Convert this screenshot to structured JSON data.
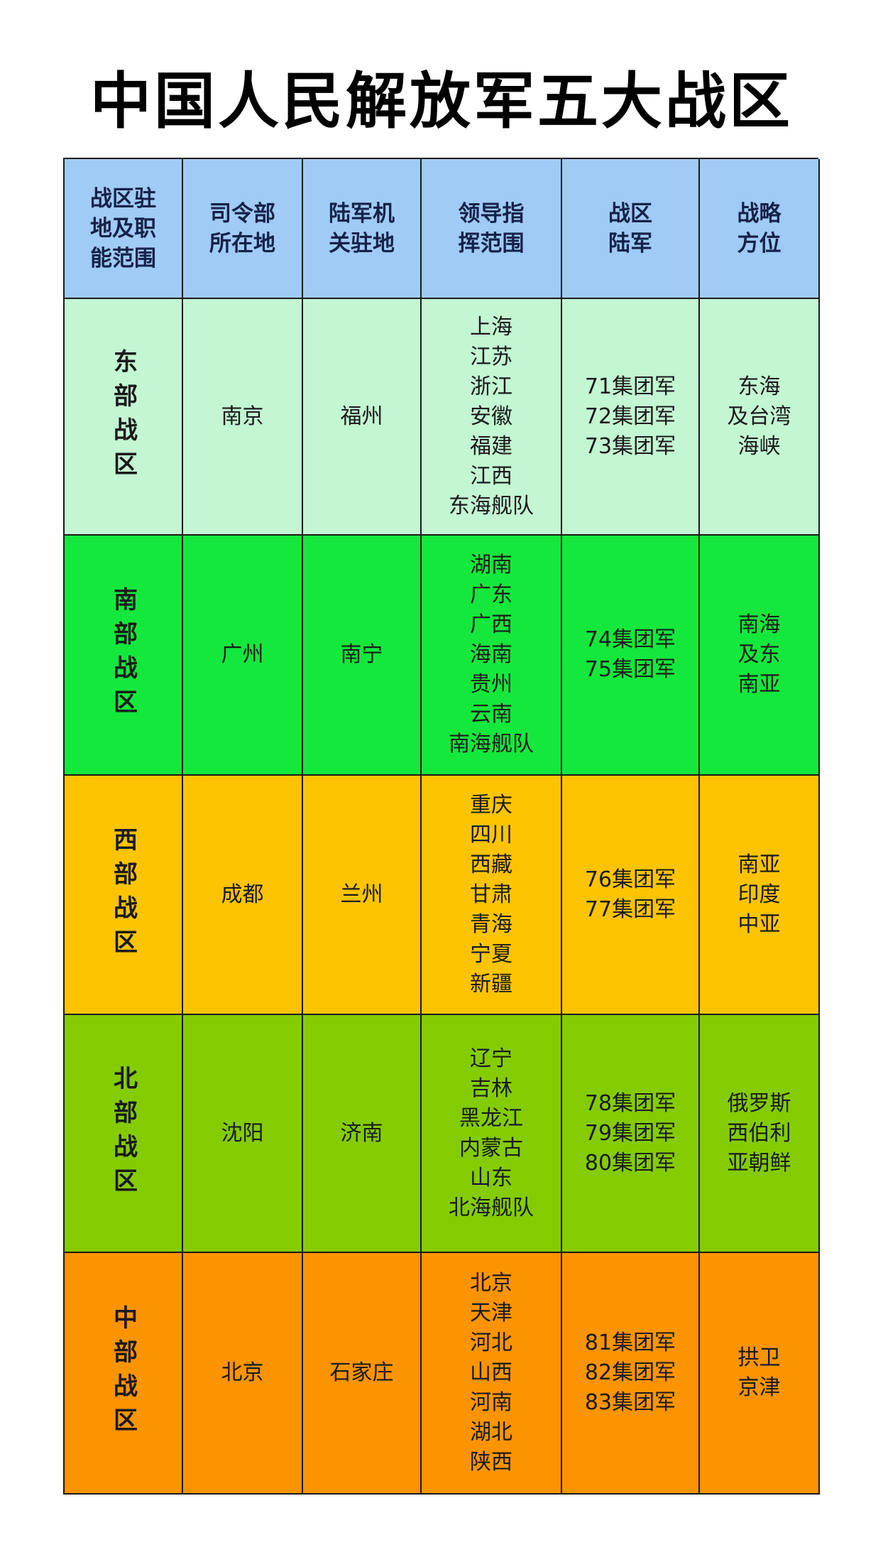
{
  "title": "中国人民解放军五大战区",
  "header": [
    "战区驻\n地及职\n能范围",
    "司令部\n所在地",
    "陆军机\n关驻地",
    "领导指\n挥范围",
    "战区\n陆军",
    "战略\n方位"
  ],
  "colors": {
    "header": "#9fcbf4",
    "east": "#c3f6d2",
    "south": "#14e83c",
    "west": "#fcc400",
    "north": "#84cc00",
    "central": "#fb9400"
  },
  "rows": [
    {
      "zone": "东部战区",
      "hq": "南京",
      "army_hq": "福州",
      "command": [
        "上海",
        "江苏",
        "浙江",
        "安徽",
        "福建",
        "江西",
        "东海舰队"
      ],
      "armies": [
        "71集团军",
        "72集团军",
        "73集团军"
      ],
      "strategic": [
        "东海",
        "及台湾",
        "海峡"
      ],
      "color_key": "east"
    },
    {
      "zone": "南部战区",
      "hq": "广州",
      "army_hq": "南宁",
      "command": [
        "湖南",
        "广东",
        "广西",
        "海南",
        "贵州",
        "云南",
        "南海舰队"
      ],
      "armies": [
        "74集团军",
        "75集团军"
      ],
      "strategic": [
        "南海",
        "及东",
        "南亚"
      ],
      "color_key": "south"
    },
    {
      "zone": "西部战区",
      "hq": "成都",
      "army_hq": "兰州",
      "command": [
        "重庆",
        "四川",
        "西藏",
        "甘肃",
        "青海",
        "宁夏",
        "新疆"
      ],
      "armies": [
        "76集团军",
        "77集团军"
      ],
      "strategic": [
        "南亚",
        "印度",
        "中亚"
      ],
      "color_key": "west"
    },
    {
      "zone": "北部战区",
      "hq": "沈阳",
      "army_hq": "济南",
      "command": [
        "辽宁",
        "吉林",
        "黑龙江",
        "内蒙古",
        "山东",
        "北海舰队"
      ],
      "armies": [
        "78集团军",
        "79集团军",
        "80集团军"
      ],
      "strategic": [
        "俄罗斯",
        "西伯利",
        "亚朝鲜"
      ],
      "color_key": "north"
    },
    {
      "zone": "中部战区",
      "hq": "北京",
      "army_hq": "石家庄",
      "command": [
        "北京",
        "天津",
        "河北",
        "山西",
        "河南",
        "湖北",
        "陕西"
      ],
      "armies": [
        "81集团军",
        "82集团军",
        "83集团军"
      ],
      "strategic": [
        "拱卫",
        "京津"
      ],
      "color_key": "central"
    }
  ]
}
